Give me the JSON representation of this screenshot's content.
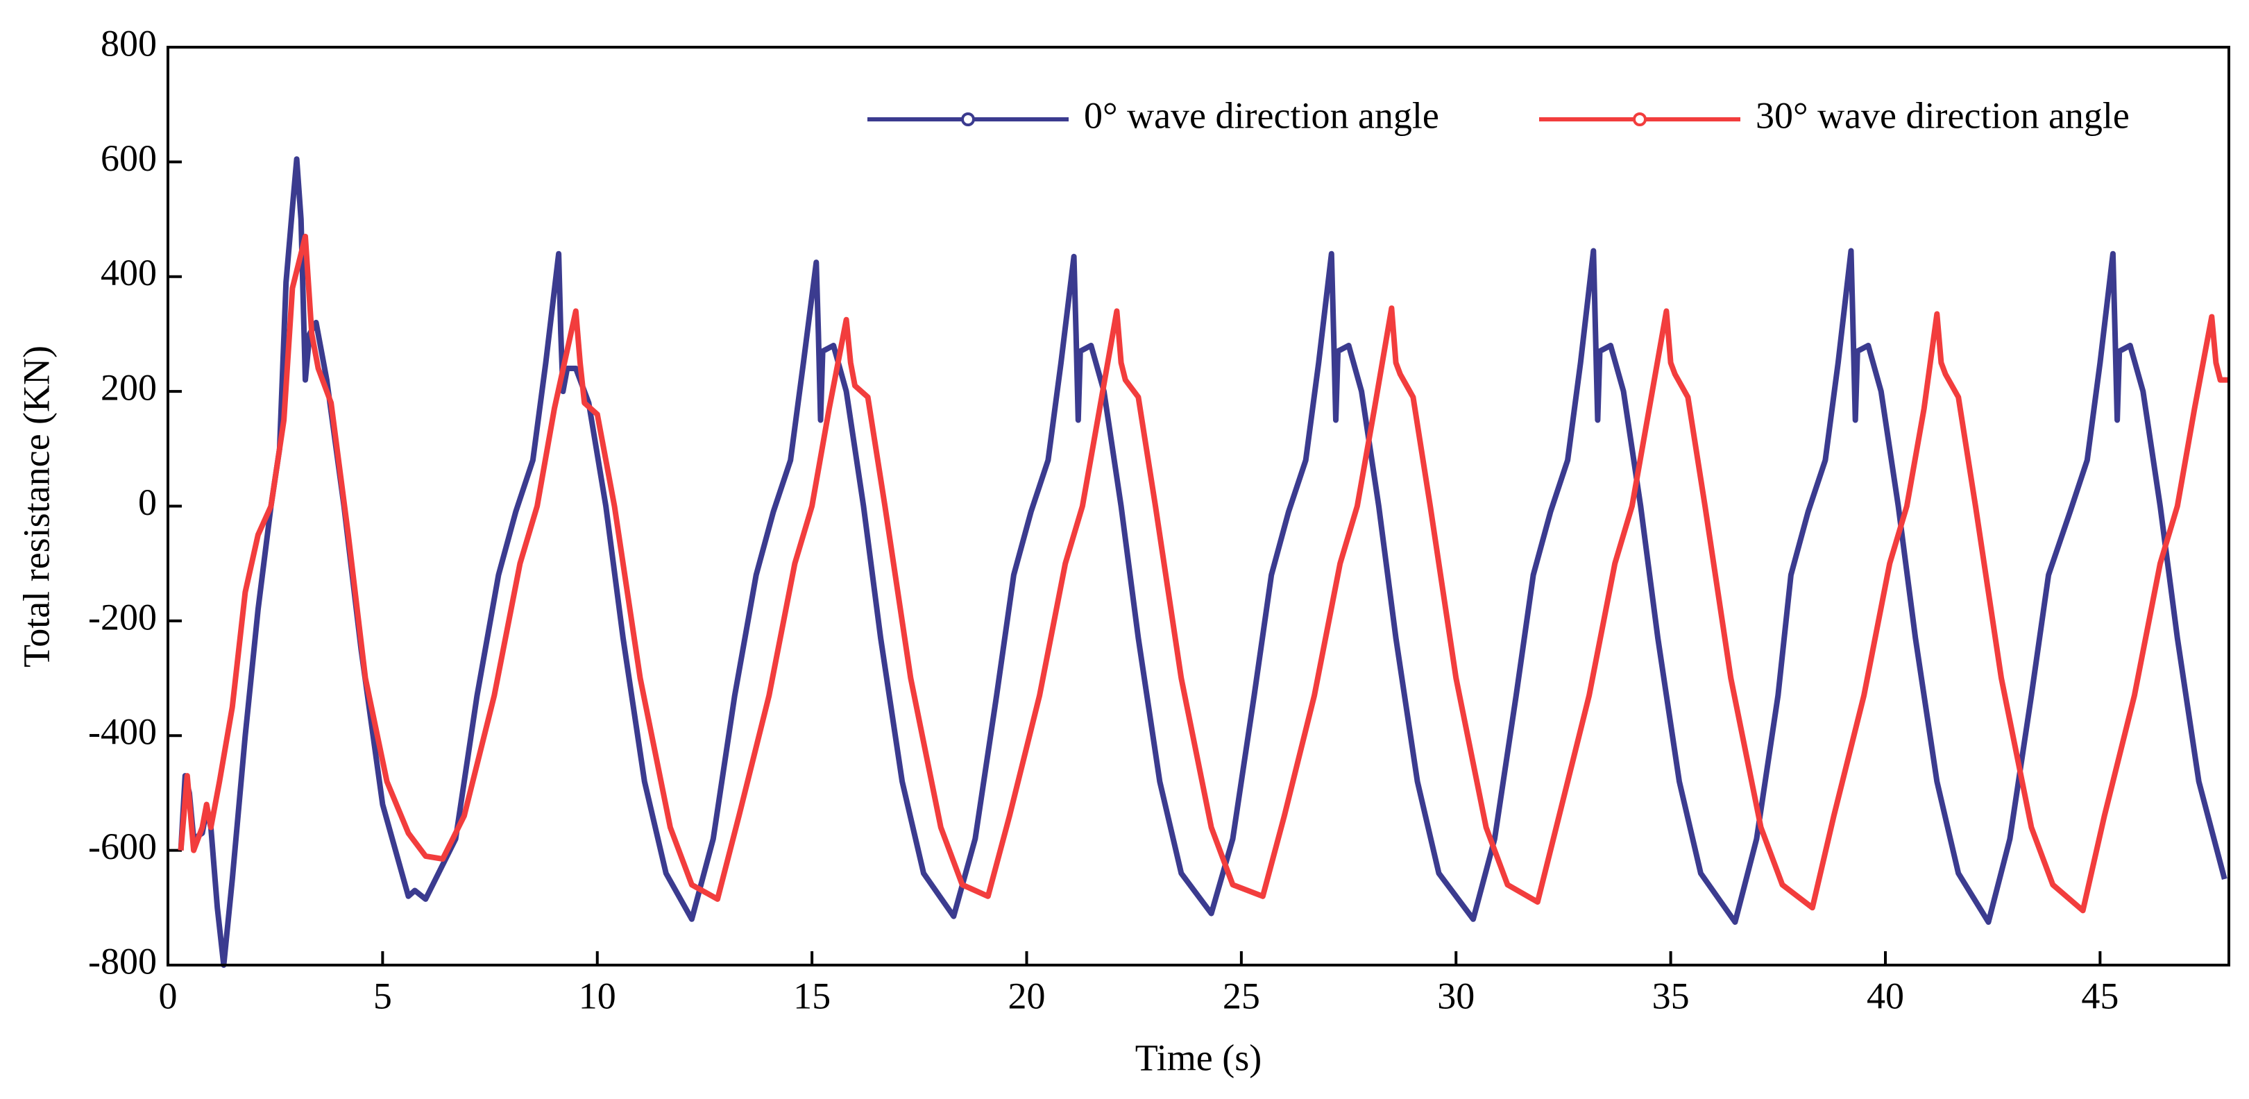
{
  "chart_data": {
    "type": "line",
    "xlabel": "Time (s)",
    "ylabel": "Total resistance (KN)",
    "xlim": [
      0,
      48
    ],
    "xticks": [
      0,
      5,
      10,
      15,
      20,
      25,
      30,
      35,
      40,
      45
    ],
    "ylim": [
      -800,
      800
    ],
    "yticks": [
      -800,
      -600,
      -400,
      -200,
      0,
      200,
      400,
      600,
      800
    ],
    "legend": "upper right",
    "series": [
      {
        "name": "0° wave direction angle",
        "color": "#3b3b8f",
        "x": [
          0.3,
          0.4,
          0.5,
          0.6,
          0.8,
          0.9,
          1.0,
          1.15,
          1.3,
          1.5,
          1.8,
          2.1,
          2.4,
          2.6,
          2.75,
          2.9,
          3.0,
          3.1,
          3.2,
          3.3,
          3.45,
          3.7,
          4.1,
          4.5,
          5.0,
          5.6,
          5.75,
          6.0,
          6.7,
          7.2,
          7.7,
          8.1,
          8.5,
          8.8,
          9.1,
          9.15,
          9.2,
          9.3,
          9.5,
          9.8,
          10.2,
          10.6,
          11.1,
          11.6,
          12.2,
          12.7,
          13.2,
          13.7,
          14.1,
          14.5,
          14.8,
          15.1,
          15.15,
          15.2,
          15.25,
          15.5,
          15.8,
          16.2,
          16.6,
          17.1,
          17.6,
          18.3,
          18.8,
          19.3,
          19.7,
          20.1,
          20.5,
          20.8,
          21.1,
          21.15,
          21.2,
          21.25,
          21.5,
          21.8,
          22.2,
          22.6,
          23.1,
          23.6,
          24.3,
          24.8,
          25.3,
          25.7,
          26.1,
          26.5,
          26.8,
          27.1,
          27.15,
          27.2,
          27.25,
          27.5,
          27.8,
          28.2,
          28.6,
          29.1,
          29.6,
          30.4,
          30.9,
          31.4,
          31.8,
          32.2,
          32.6,
          32.9,
          33.2,
          33.25,
          33.3,
          33.35,
          33.6,
          33.9,
          34.3,
          34.7,
          35.2,
          35.7,
          36.5,
          37.0,
          37.5,
          37.8,
          38.2,
          38.6,
          38.9,
          39.2,
          39.25,
          39.3,
          39.35,
          39.6,
          39.9,
          40.3,
          40.7,
          41.2,
          41.7,
          42.4,
          42.9,
          43.4,
          43.8,
          44.3,
          44.7,
          45.0,
          45.3,
          45.35,
          45.4,
          45.45,
          45.7,
          46.0,
          46.4,
          46.8,
          47.3,
          47.9
        ],
        "values": [
          -600,
          -470,
          -500,
          -580,
          -570,
          -530,
          -560,
          -700,
          -800,
          -650,
          -400,
          -180,
          0,
          100,
          390,
          520,
          605,
          500,
          220,
          300,
          320,
          220,
          0,
          -250,
          -520,
          -680,
          -670,
          -685,
          -580,
          -330,
          -120,
          -10,
          80,
          250,
          440,
          300,
          200,
          240,
          240,
          180,
          0,
          -230,
          -480,
          -640,
          -720,
          -580,
          -330,
          -120,
          -10,
          80,
          250,
          425,
          300,
          150,
          270,
          280,
          200,
          0,
          -230,
          -480,
          -640,
          -715,
          -580,
          -330,
          -120,
          -10,
          80,
          250,
          435,
          300,
          150,
          270,
          280,
          200,
          0,
          -230,
          -480,
          -640,
          -710,
          -580,
          -330,
          -120,
          -10,
          80,
          250,
          440,
          300,
          150,
          270,
          280,
          200,
          0,
          -230,
          -480,
          -640,
          -720,
          -580,
          -330,
          -120,
          -10,
          80,
          250,
          445,
          300,
          150,
          270,
          280,
          200,
          0,
          -230,
          -480,
          -640,
          -725,
          -580,
          -330,
          -120,
          -10,
          80,
          250,
          445,
          300,
          150,
          270,
          280,
          200,
          0,
          -230,
          -480,
          -640,
          -725,
          -580,
          -330,
          -120,
          -10,
          80,
          250,
          440,
          300,
          150,
          270,
          280,
          200,
          0,
          -230,
          -480,
          -650
        ]
      },
      {
        "name": "30° wave direction angle",
        "color": "#f23d3d",
        "x": [
          0.3,
          0.45,
          0.6,
          0.8,
          0.9,
          1.0,
          1.2,
          1.5,
          1.8,
          2.1,
          2.4,
          2.7,
          2.9,
          3.1,
          3.2,
          3.35,
          3.5,
          3.8,
          4.2,
          4.6,
          5.1,
          5.6,
          6.0,
          6.4,
          6.9,
          7.6,
          8.2,
          8.6,
          9.0,
          9.5,
          9.6,
          9.7,
          10.0,
          10.4,
          11.0,
          11.7,
          12.2,
          12.8,
          13.3,
          14.0,
          14.6,
          15.0,
          15.4,
          15.8,
          15.9,
          16.0,
          16.3,
          16.7,
          17.3,
          18.0,
          18.5,
          19.1,
          19.6,
          20.3,
          20.9,
          21.3,
          21.7,
          22.1,
          22.2,
          22.3,
          22.6,
          23.0,
          23.6,
          24.3,
          24.8,
          25.5,
          26.0,
          26.7,
          27.3,
          27.7,
          28.1,
          28.5,
          28.6,
          28.7,
          29.0,
          29.4,
          30.0,
          30.7,
          31.2,
          31.9,
          32.4,
          33.1,
          33.7,
          34.1,
          34.5,
          34.9,
          35.0,
          35.1,
          35.4,
          35.8,
          36.4,
          37.1,
          37.6,
          38.3,
          38.8,
          39.5,
          40.1,
          40.5,
          40.9,
          41.2,
          41.3,
          41.4,
          41.7,
          42.1,
          42.7,
          43.4,
          43.9,
          44.6,
          45.1,
          45.8,
          46.4,
          46.8,
          47.2,
          47.6,
          47.7,
          47.8,
          48.0
        ],
        "values": [
          -600,
          -470,
          -600,
          -560,
          -520,
          -560,
          -480,
          -350,
          -150,
          -50,
          0,
          150,
          380,
          440,
          470,
          300,
          240,
          180,
          -50,
          -300,
          -480,
          -570,
          -610,
          -615,
          -540,
          -330,
          -100,
          0,
          170,
          340,
          250,
          180,
          160,
          0,
          -300,
          -560,
          -660,
          -685,
          -540,
          -330,
          -100,
          0,
          170,
          325,
          250,
          210,
          190,
          0,
          -300,
          -560,
          -660,
          -680,
          -540,
          -330,
          -100,
          0,
          170,
          340,
          250,
          220,
          190,
          0,
          -300,
          -560,
          -660,
          -680,
          -540,
          -330,
          -100,
          0,
          170,
          345,
          250,
          230,
          190,
          0,
          -300,
          -560,
          -660,
          -690,
          -540,
          -330,
          -100,
          0,
          170,
          340,
          250,
          230,
          190,
          0,
          -300,
          -560,
          -660,
          -700,
          -540,
          -330,
          -100,
          0,
          170,
          335,
          250,
          230,
          190,
          0,
          -300,
          -560,
          -660,
          -705,
          -540,
          -330,
          -100,
          0,
          170,
          330,
          250,
          220,
          220
        ]
      }
    ]
  }
}
